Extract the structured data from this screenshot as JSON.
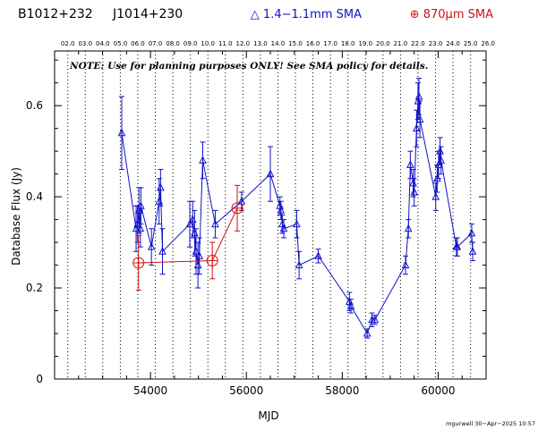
{
  "header": {
    "source_name": "B1012+232",
    "alt_name": "J1014+230",
    "legend_blue": "△ 1.4−1.1mm SMA",
    "legend_red": "⊕ 870μm SMA"
  },
  "note": "NOTE: Use for planning purposes ONLY! See SMA policy for details.",
  "footer": "mgurwell 30−Apr−2025 10:57",
  "colors": {
    "blue": "#1010c8",
    "red": "#d01010",
    "axis": "#000000"
  },
  "chart_data": {
    "type": "line",
    "xlabel": "MJD",
    "ylabel": "Database Flux (Jy)",
    "xlim": [
      52000,
      61000
    ],
    "ylim": [
      0,
      0.72
    ],
    "x_ticks": [
      54000,
      56000,
      58000,
      60000
    ],
    "y_ticks": [
      0,
      0.2,
      0.4,
      0.6
    ],
    "year_markers": [
      {
        "label": "02.0",
        "mjd": 52275
      },
      {
        "label": "03.0",
        "mjd": 52640
      },
      {
        "label": "04.0",
        "mjd": 53005
      },
      {
        "label": "05.0",
        "mjd": 53371
      },
      {
        "label": "06.0",
        "mjd": 53736
      },
      {
        "label": "07.0",
        "mjd": 54101
      },
      {
        "label": "08.0",
        "mjd": 54466
      },
      {
        "label": "09.0",
        "mjd": 54832
      },
      {
        "label": "10.0",
        "mjd": 55197
      },
      {
        "label": "11.0",
        "mjd": 55562
      },
      {
        "label": "12.0",
        "mjd": 55927
      },
      {
        "label": "13.0",
        "mjd": 56293
      },
      {
        "label": "14.0",
        "mjd": 56658
      },
      {
        "label": "15.0",
        "mjd": 57023
      },
      {
        "label": "16.0",
        "mjd": 57388
      },
      {
        "label": "17.0",
        "mjd": 57754
      },
      {
        "label": "18.0",
        "mjd": 58119
      },
      {
        "label": "19.0",
        "mjd": 58484
      },
      {
        "label": "20.0",
        "mjd": 58849
      },
      {
        "label": "21.0",
        "mjd": 59215
      },
      {
        "label": "22.0",
        "mjd": 59580
      },
      {
        "label": "23.0",
        "mjd": 59945
      },
      {
        "label": "24.0",
        "mjd": 60310
      },
      {
        "label": "25.0",
        "mjd": 60676
      },
      {
        "label": "26.0",
        "mjd": 61041
      }
    ],
    "series": [
      {
        "name": "1.4−1.1mm SMA",
        "marker": "triangle",
        "points": [
          {
            "x": 53400,
            "y": 0.54,
            "err": 0.08
          },
          {
            "x": 53700,
            "y": 0.33,
            "err": 0.05
          },
          {
            "x": 53730,
            "y": 0.34,
            "err": 0.04
          },
          {
            "x": 53760,
            "y": 0.37,
            "err": 0.05
          },
          {
            "x": 53790,
            "y": 0.33,
            "err": 0.04
          },
          {
            "x": 53800,
            "y": 0.38,
            "err": 0.04
          },
          {
            "x": 54020,
            "y": 0.29,
            "err": 0.04
          },
          {
            "x": 54180,
            "y": 0.39,
            "err": 0.05
          },
          {
            "x": 54210,
            "y": 0.42,
            "err": 0.04
          },
          {
            "x": 54250,
            "y": 0.28,
            "err": 0.05
          },
          {
            "x": 54820,
            "y": 0.34,
            "err": 0.05
          },
          {
            "x": 54880,
            "y": 0.35,
            "err": 0.04
          },
          {
            "x": 54920,
            "y": 0.32,
            "err": 0.05
          },
          {
            "x": 54950,
            "y": 0.28,
            "err": 0.05
          },
          {
            "x": 54990,
            "y": 0.25,
            "err": 0.05
          },
          {
            "x": 55020,
            "y": 0.27,
            "err": 0.04
          },
          {
            "x": 55090,
            "y": 0.48,
            "err": 0.04
          },
          {
            "x": 55350,
            "y": 0.34,
            "err": 0.03
          },
          {
            "x": 55900,
            "y": 0.39,
            "err": 0.02
          },
          {
            "x": 56500,
            "y": 0.45,
            "err": 0.06
          },
          {
            "x": 56700,
            "y": 0.38,
            "err": 0.02
          },
          {
            "x": 56720,
            "y": 0.37,
            "err": 0.02
          },
          {
            "x": 56750,
            "y": 0.34,
            "err": 0.02
          },
          {
            "x": 56780,
            "y": 0.33,
            "err": 0.02
          },
          {
            "x": 57050,
            "y": 0.34,
            "err": 0.03
          },
          {
            "x": 57100,
            "y": 0.25,
            "err": 0.03
          },
          {
            "x": 57500,
            "y": 0.27,
            "err": 0.015
          },
          {
            "x": 58150,
            "y": 0.17,
            "err": 0.02
          },
          {
            "x": 58180,
            "y": 0.16,
            "err": 0.015
          },
          {
            "x": 58520,
            "y": 0.1,
            "err": 0.01
          },
          {
            "x": 58620,
            "y": 0.13,
            "err": 0.015
          },
          {
            "x": 58680,
            "y": 0.13,
            "err": 0.01
          },
          {
            "x": 59320,
            "y": 0.25,
            "err": 0.02
          },
          {
            "x": 59380,
            "y": 0.33,
            "err": 0.02
          },
          {
            "x": 59420,
            "y": 0.47,
            "err": 0.03
          },
          {
            "x": 59480,
            "y": 0.43,
            "err": 0.03
          },
          {
            "x": 59500,
            "y": 0.41,
            "err": 0.03
          },
          {
            "x": 59550,
            "y": 0.55,
            "err": 0.04
          },
          {
            "x": 59580,
            "y": 0.61,
            "err": 0.04
          },
          {
            "x": 59600,
            "y": 0.62,
            "err": 0.04
          },
          {
            "x": 59620,
            "y": 0.57,
            "err": 0.04
          },
          {
            "x": 59950,
            "y": 0.4,
            "err": 0.03
          },
          {
            "x": 59980,
            "y": 0.44,
            "err": 0.03
          },
          {
            "x": 60010,
            "y": 0.47,
            "err": 0.03
          },
          {
            "x": 60040,
            "y": 0.5,
            "err": 0.03
          },
          {
            "x": 60060,
            "y": 0.48,
            "err": 0.03
          },
          {
            "x": 60380,
            "y": 0.29,
            "err": 0.02
          },
          {
            "x": 60400,
            "y": 0.29,
            "err": 0.02
          },
          {
            "x": 60700,
            "y": 0.32,
            "err": 0.02
          },
          {
            "x": 60720,
            "y": 0.28,
            "err": 0.02
          }
        ]
      },
      {
        "name": "870μm SMA",
        "marker": "circle-plus",
        "points": [
          {
            "x": 53750,
            "y": 0.255,
            "err": 0.06
          },
          {
            "x": 55290,
            "y": 0.26,
            "err": 0.04
          },
          {
            "x": 55810,
            "y": 0.375,
            "err": 0.05
          }
        ]
      }
    ]
  }
}
